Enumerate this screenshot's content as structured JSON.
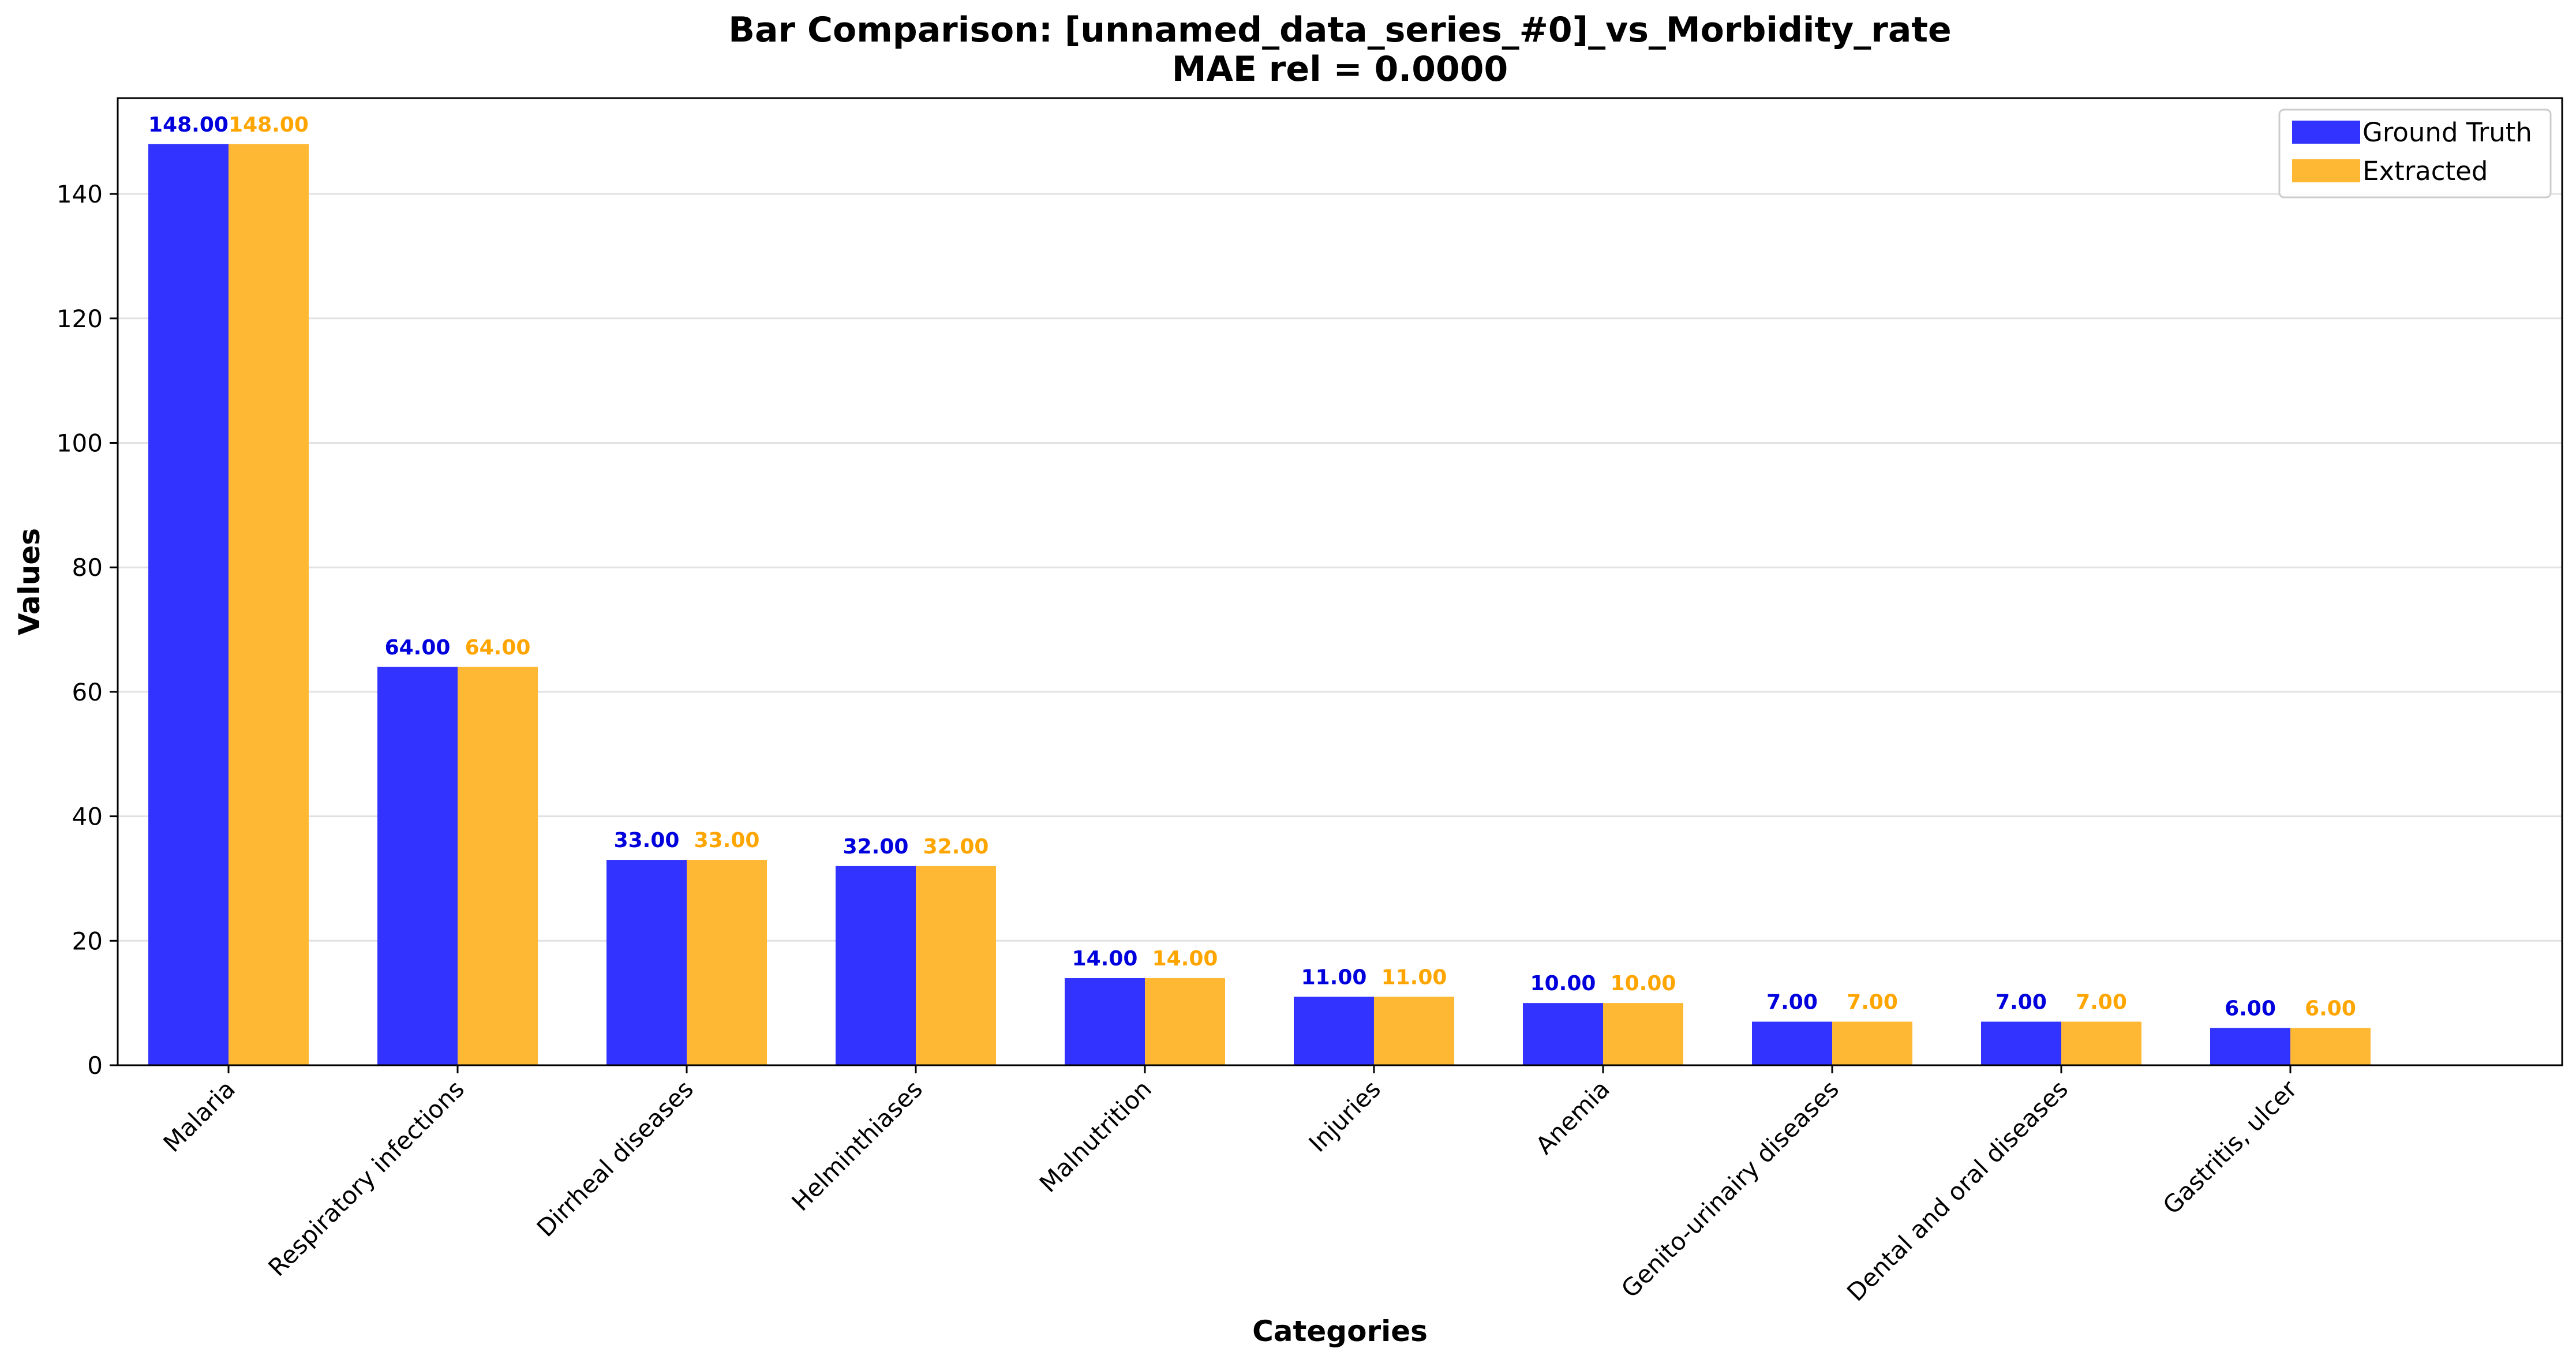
{
  "chart_data": {
    "type": "bar",
    "title_line1": "Bar Comparison: [unnamed_data_series_#0]_vs_Morbidity_rate",
    "title_line2": "MAE rel = 0.0000",
    "xlabel": "Categories",
    "ylabel": "Values",
    "categories": [
      "Malaria",
      "Respiratory infections",
      "Dirrheal diseases",
      "Helminthiases",
      "Malnutrition",
      "Injuries",
      "Anemia",
      "Genito-urinairy diseases",
      "Dental and oral diseases",
      "Gastritis, ulcer"
    ],
    "series": [
      {
        "name": "Ground Truth",
        "color": "#3333ff",
        "label_color": "#0000dd",
        "values": [
          148,
          64,
          33,
          32,
          14,
          11,
          10,
          7,
          7,
          6
        ],
        "value_labels": [
          "148.00",
          "64.00",
          "33.00",
          "32.00",
          "14.00",
          "11.00",
          "10.00",
          "7.00",
          "7.00",
          "6.00"
        ]
      },
      {
        "name": "Extracted",
        "color": "#ffb833",
        "label_color": "#ffa500",
        "values": [
          148,
          64,
          33,
          32,
          14,
          11,
          10,
          7,
          7,
          6
        ],
        "value_labels": [
          "148.00",
          "64.00",
          "33.00",
          "32.00",
          "14.00",
          "11.00",
          "10.00",
          "7.00",
          "7.00",
          "6.00"
        ]
      }
    ],
    "yticks": [
      0,
      20,
      40,
      60,
      80,
      100,
      120,
      140
    ],
    "ytick_labels": [
      "0",
      "20",
      "40",
      "60",
      "80",
      "100",
      "120",
      "140"
    ],
    "ylim": [
      0,
      155.4
    ],
    "grid": "horizontal",
    "legend_position": "top-right"
  }
}
